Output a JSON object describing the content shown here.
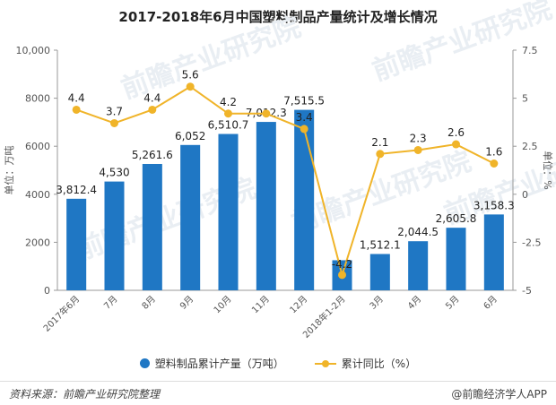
{
  "title": "2017-2018年6月中国塑料制品产量统计及增长情况",
  "left_axis_label": "单位：万吨",
  "right_axis_label": "单位：%",
  "legend": {
    "bar_label": "塑料制品累计产量（万吨）",
    "line_label": "累计同比（%）"
  },
  "footer": {
    "source": "资料来源：前瞻产业研究院整理",
    "brand": "@前瞻经济学人APP"
  },
  "watermark_text": "前瞻产业研究院",
  "colors": {
    "bar": "#1f77c4",
    "line": "#f0b429"
  },
  "chart_data": {
    "type": "bar",
    "categories": [
      "2017年6月",
      "7月",
      "8月",
      "9月",
      "10月",
      "11月",
      "12月",
      "2018年1-2月",
      "3月",
      "4月",
      "5月",
      "6月"
    ],
    "series": [
      {
        "name": "塑料制品累计产量（万吨）",
        "type": "bar",
        "axis": "left",
        "values": [
          3812.4,
          4530,
          5261.6,
          6052,
          6510.7,
          7012.3,
          7515.5,
          1251.9,
          1512.1,
          2044.5,
          2605.8,
          3158.3
        ],
        "labels": [
          "3,812.4",
          "4,530",
          "5,261.6",
          "6,052",
          "6,510.7",
          "7,012.3",
          "7,515.5",
          "",
          "1,512.1",
          "2,044.5",
          "2,605.8",
          "3,158.3"
        ]
      },
      {
        "name": "累计同比（%）",
        "type": "line",
        "axis": "right",
        "values": [
          4.4,
          3.7,
          4.4,
          5.6,
          4.2,
          4.2,
          3.4,
          -4.2,
          2.1,
          2.3,
          2.6,
          1.6
        ],
        "labels": [
          "4.4",
          "3.7",
          "4.4",
          "5.6",
          "4.2",
          "",
          "3.4",
          "-4.2",
          "2.1",
          "2.3",
          "2.6",
          "1.6"
        ]
      }
    ],
    "left_ticks": [
      "0",
      "2000",
      "4000",
      "6000",
      "8000",
      "10,000"
    ],
    "right_ticks": [
      "-5",
      "-2.5",
      "0",
      "2.5",
      "5",
      "7.5"
    ],
    "ylim_left": [
      0,
      10000
    ],
    "ylim_right": [
      -5,
      7.5
    ],
    "grid": false,
    "legend_position": "bottom"
  }
}
